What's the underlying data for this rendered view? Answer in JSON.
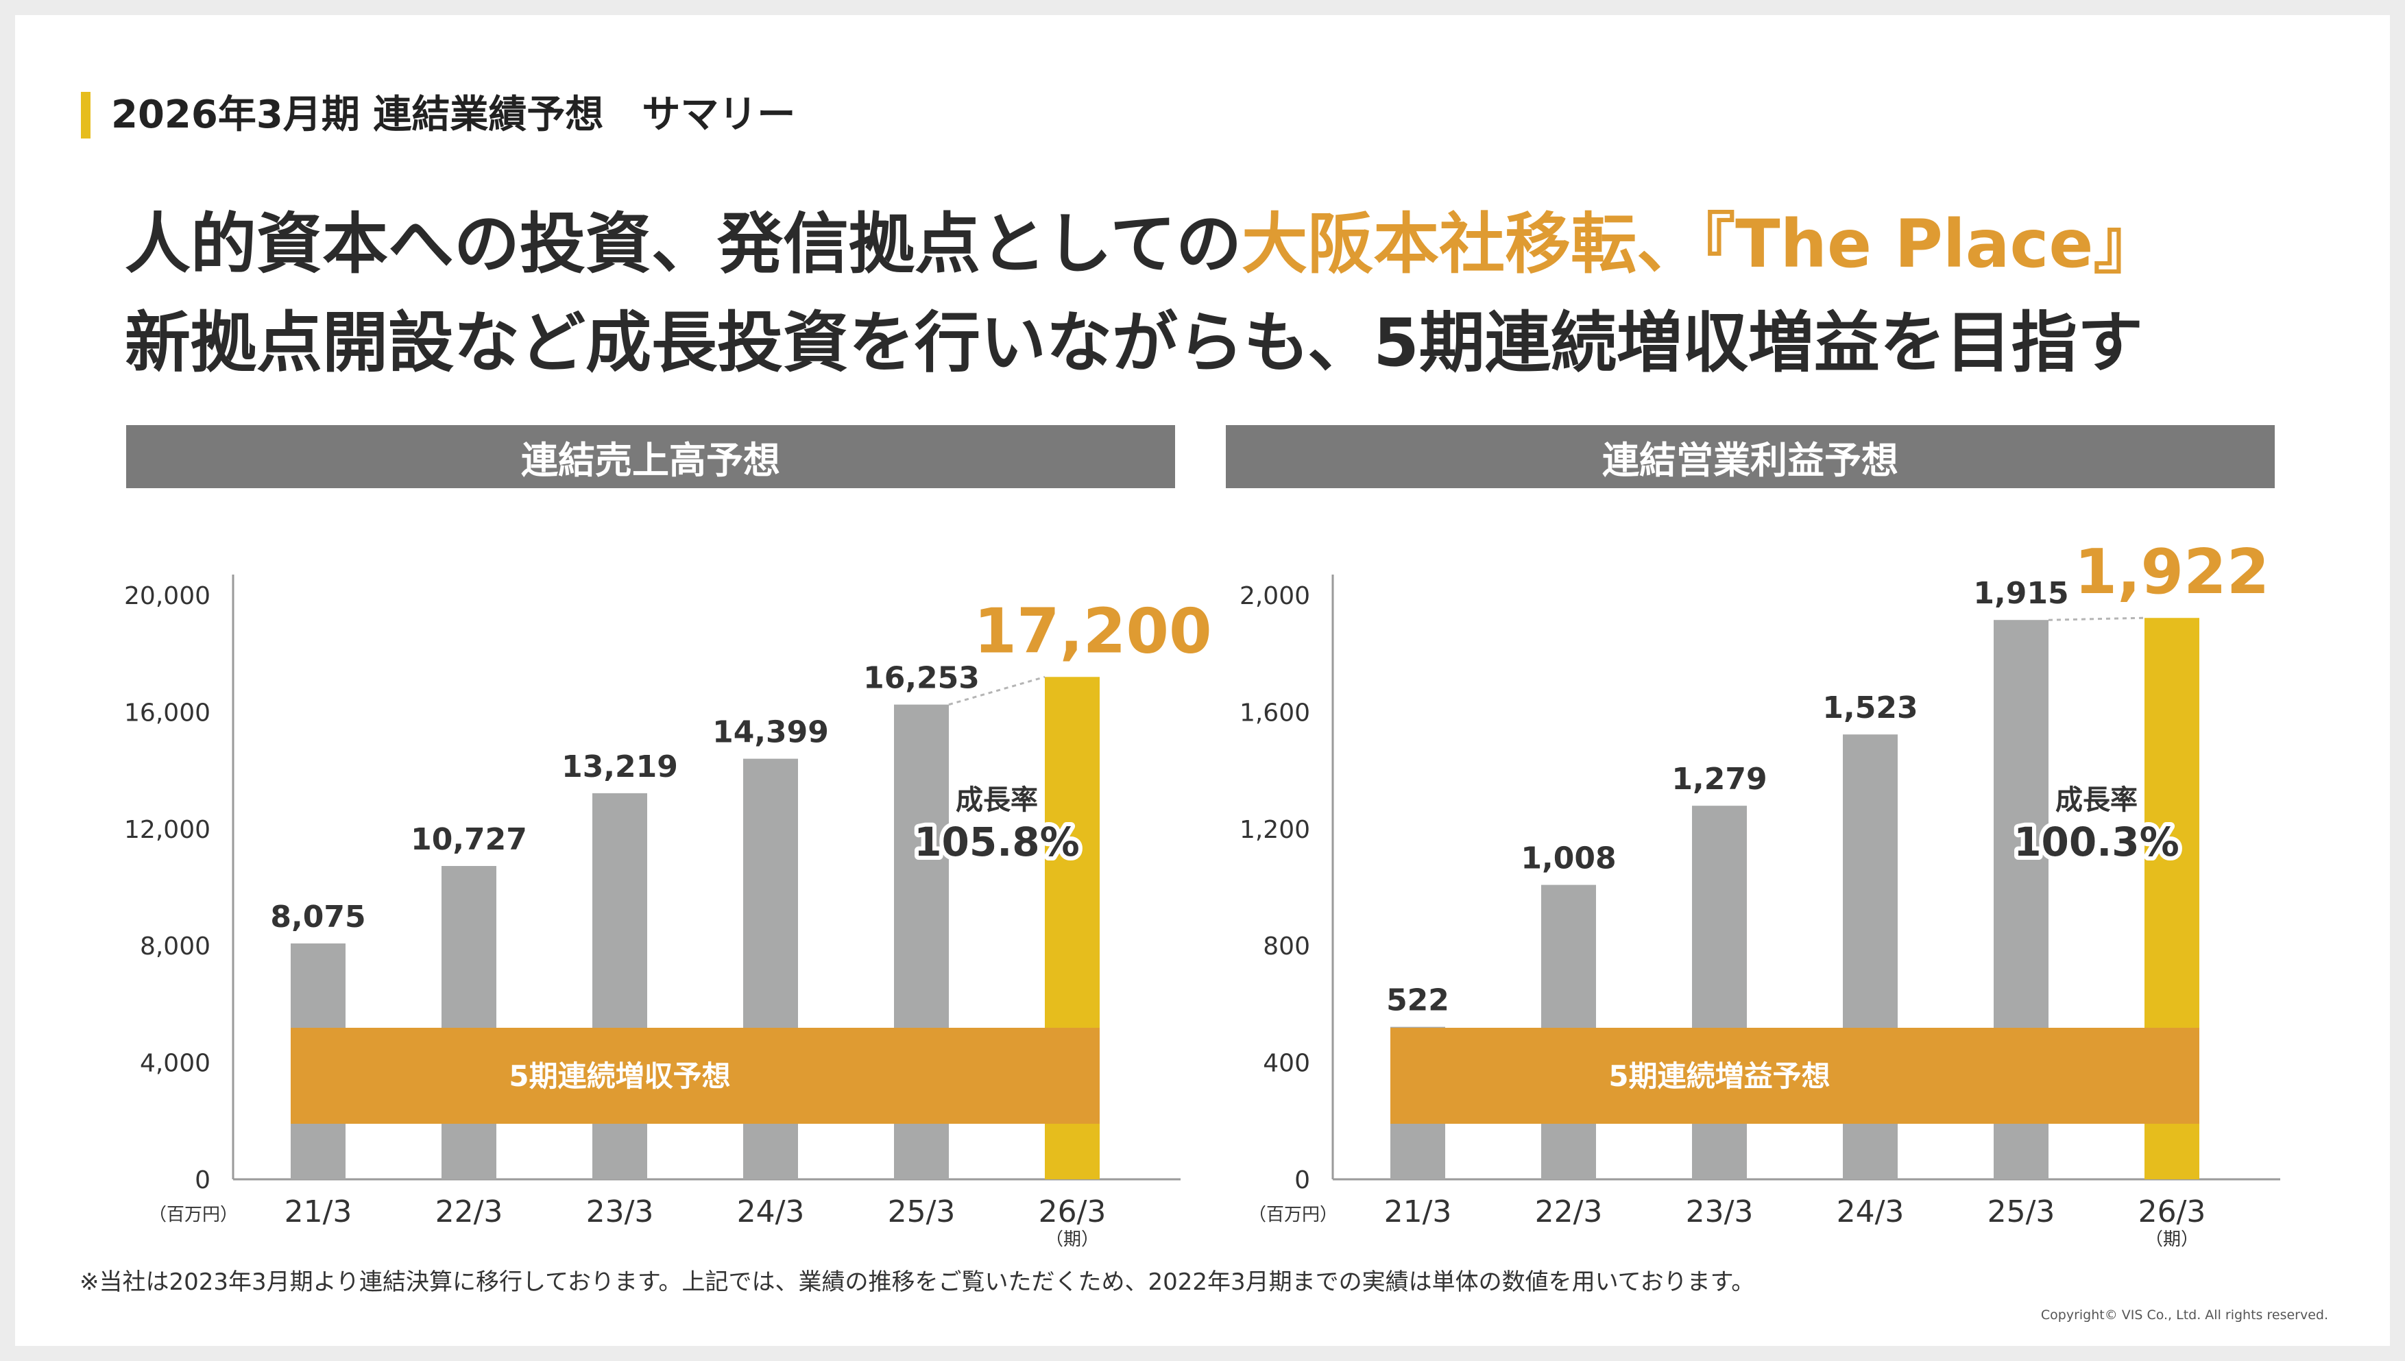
{
  "section": {
    "title": "2026年3月期 連結業績予想　サマリー"
  },
  "headline": {
    "line1_pre": "人的資本への投資、発信拠点としての",
    "line1_accent": "大阪本社移転、『The Place』",
    "line2": "新拠点開設など成長投資を行いながらも、5期連続増収増益を目指す"
  },
  "colors": {
    "actual": "#a8a9a9",
    "forecast": "#e6bd1d",
    "band": "#df9b32",
    "header": "#7a7a7a",
    "accent": "#df9b32"
  },
  "chart_data": [
    {
      "type": "bar",
      "title": "連結売上高予想",
      "categories": [
        "21/3",
        "22/3",
        "23/3",
        "24/3",
        "25/3",
        "26/3"
      ],
      "values": [
        8075,
        10727,
        13219,
        14399,
        16253,
        17200
      ],
      "value_labels": [
        "8,075",
        "10,727",
        "13,219",
        "14,399",
        "16,253",
        "17,200"
      ],
      "forecast_index": 5,
      "ylim": [
        0,
        20000
      ],
      "yticks": [
        0,
        4000,
        8000,
        12000,
        16000,
        20000
      ],
      "ytick_labels": [
        "0",
        "4,000",
        "8,000",
        "12,000",
        "16,000",
        "20,000"
      ],
      "y_unit": "（百万円）",
      "x_unit": "（期）",
      "band_label": "5期連続増収予想",
      "growth_label": "成長率",
      "growth_value": "105.8%",
      "grid": false
    },
    {
      "type": "bar",
      "title": "連結営業利益予想",
      "categories": [
        "21/3",
        "22/3",
        "23/3",
        "24/3",
        "25/3",
        "26/3"
      ],
      "values": [
        522,
        1008,
        1279,
        1523,
        1915,
        1922
      ],
      "value_labels": [
        "522",
        "1,008",
        "1,279",
        "1,523",
        "1,915",
        "1,922"
      ],
      "forecast_index": 5,
      "ylim": [
        0,
        2000
      ],
      "yticks": [
        0,
        400,
        800,
        1200,
        1600,
        2000
      ],
      "ytick_labels": [
        "0",
        "400",
        "800",
        "1,200",
        "1,600",
        "2,000"
      ],
      "y_unit": "（百万円）",
      "x_unit": "（期）",
      "band_label": "5期連続増益予想",
      "growth_label": "成長率",
      "growth_value": "100.3%",
      "grid": false
    }
  ],
  "footnote": "※当社は2023年3月期より連結決算に移行しております。上記では、業績の推移をご覧いただくため、2022年3月期までの実績は単体の数値を用いております。",
  "copyright": "Copyright© VIS Co., Ltd. All rights reserved."
}
